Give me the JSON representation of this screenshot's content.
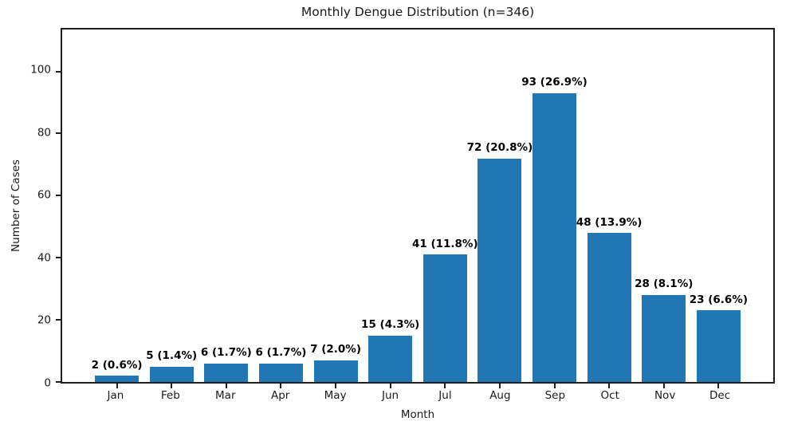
{
  "chart_data": {
    "type": "bar",
    "title": "Monthly Dengue Distribution (n=346)",
    "xlabel": "Month",
    "ylabel": "Number of Cases",
    "categories": [
      "Jan",
      "Feb",
      "Mar",
      "Apr",
      "May",
      "Jun",
      "Jul",
      "Aug",
      "Sep",
      "Oct",
      "Nov",
      "Dec"
    ],
    "values": [
      2,
      5,
      6,
      6,
      7,
      15,
      41,
      72,
      93,
      48,
      28,
      23
    ],
    "bar_labels": [
      "2 (0.6%)",
      "5 (1.4%)",
      "6 (1.7%)",
      "6 (1.7%)",
      "7 (2.0%)",
      "15 (4.3%)",
      "41 (11.8%)",
      "72 (20.8%)",
      "93 (26.9%)",
      "48 (13.9%)",
      "28 (8.1%)",
      "23 (6.6%)"
    ],
    "total_n": 346,
    "yticks": [
      0,
      20,
      40,
      60,
      80,
      100
    ],
    "ylim": [
      0,
      113.5
    ],
    "xlim": [
      -1,
      12
    ],
    "bar_width_units": 0.8,
    "bar_color": "#2077b4",
    "axis_color": "#1f1f1f",
    "label_color": "#000000",
    "grid": false,
    "legend": "none",
    "frame": "full-box"
  }
}
